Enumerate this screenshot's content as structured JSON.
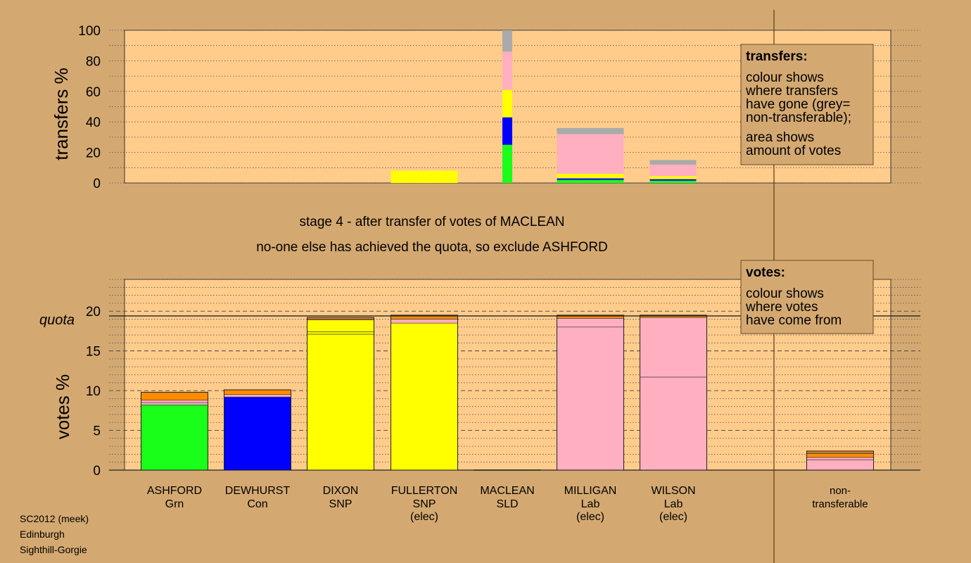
{
  "footer": [
    "SC2012 (meek)",
    "Edinburgh",
    "Sighthill-Gorgie"
  ],
  "stage_title": "stage 4 - after transfer of votes of MACLEAN",
  "stage_subtitle": "no-one else has achieved the quota, so exclude ASHFORD",
  "colors": {
    "background": "#d4a971",
    "plot_bg": "#ffcc8c",
    "Grn": "#19ff19",
    "Con": "#0000ff",
    "SNP": "#ffff00",
    "SLD": "#ffff00",
    "Lab": "#ffafc0",
    "orange": "#ff8c00",
    "nontransferable": "#aaaaaa"
  },
  "legend_transfers": {
    "title": "transfers:",
    "lines": [
      "colour shows",
      "where transfers",
      "have gone (grey=",
      "non-transferable);"
    ],
    "lines2": [
      "area shows",
      "amount of votes"
    ]
  },
  "legend_votes": {
    "title": "votes:",
    "lines": [
      "colour shows",
      "where votes",
      "have come from"
    ]
  },
  "chart_data": [
    {
      "type": "bar",
      "ylabel": "transfers %",
      "ylim": [
        0,
        100
      ],
      "yticks": [
        0,
        20,
        40,
        60,
        80,
        100
      ],
      "note": "transfers of votes of MACLEAN (SLD)",
      "source_column": {
        "candidate": "MACLEAN",
        "segments": [
          {
            "color": "#19ff19",
            "from": 0,
            "to": 25
          },
          {
            "color": "#0000ff",
            "from": 25,
            "to": 43
          },
          {
            "color": "#ffff00",
            "from": 43,
            "to": 61
          },
          {
            "color": "#ffafc0",
            "from": 61,
            "to": 86
          },
          {
            "color": "#aaaaaa",
            "from": 86,
            "to": 100
          }
        ]
      },
      "receivers": [
        {
          "candidate": "FULLERTON",
          "segments": [
            {
              "color": "#ffff00",
              "from": 0,
              "to": 8
            }
          ]
        },
        {
          "candidate": "MILLIGAN",
          "segments": [
            {
              "color": "#19ff19",
              "from": 0,
              "to": 2
            },
            {
              "color": "#0000ff",
              "from": 2,
              "to": 3
            },
            {
              "color": "#ffff00",
              "from": 3,
              "to": 6
            },
            {
              "color": "#ffafc0",
              "from": 6,
              "to": 32
            },
            {
              "color": "#aaaaaa",
              "from": 32,
              "to": 36
            }
          ]
        },
        {
          "candidate": "WILSON",
          "segments": [
            {
              "color": "#19ff19",
              "from": 0,
              "to": 1.5
            },
            {
              "color": "#0000ff",
              "from": 1.5,
              "to": 2.5
            },
            {
              "color": "#ffff00",
              "from": 2.5,
              "to": 4.5
            },
            {
              "color": "#ffafc0",
              "from": 4.5,
              "to": 12
            },
            {
              "color": "#aaaaaa",
              "from": 12,
              "to": 15
            }
          ]
        }
      ]
    },
    {
      "type": "bar",
      "ylabel": "votes %",
      "ylim": [
        0,
        24
      ],
      "yticks": [
        0,
        5,
        10,
        15,
        20
      ],
      "quota": 19.4,
      "quota_label": "quota",
      "candidates": [
        {
          "name": "ASHFORD",
          "party": "Grn",
          "elec": "",
          "total": 9.8,
          "segments": [
            {
              "color": "#19ff19",
              "from": 0,
              "to": 8.2
            },
            {
              "color": "#ffafc0",
              "from": 8.2,
              "to": 8.5
            },
            {
              "color": "#ffafc0",
              "from": 8.5,
              "to": 8.8
            },
            {
              "color": "#ff8c00",
              "from": 8.8,
              "to": 9.8
            }
          ]
        },
        {
          "name": "DEWHURST",
          "party": "Con",
          "elec": "",
          "total": 10.1,
          "segments": [
            {
              "color": "#0000ff",
              "from": 0,
              "to": 9.2
            },
            {
              "color": "#ffafc0",
              "from": 9.2,
              "to": 9.5
            },
            {
              "color": "#ff8c00",
              "from": 9.5,
              "to": 10.1
            }
          ]
        },
        {
          "name": "DIXON",
          "party": "SNP",
          "elec": "",
          "total": 19.2,
          "segments": [
            {
              "color": "#ffff00",
              "from": 0,
              "to": 17.1
            },
            {
              "color": "#ffff00",
              "from": 17.1,
              "to": 17.4
            },
            {
              "color": "#ffff00",
              "from": 17.4,
              "to": 18.9
            },
            {
              "color": "#ffafc0",
              "from": 18.9,
              "to": 19.0
            },
            {
              "color": "#ff8c00",
              "from": 19.0,
              "to": 19.2
            }
          ]
        },
        {
          "name": "FULLERTON",
          "party": "SNP",
          "elec": "(elec)",
          "total": 19.5,
          "segments": [
            {
              "color": "#ffff00",
              "from": 0,
              "to": 18.5
            },
            {
              "color": "#ffafc0",
              "from": 18.5,
              "to": 19.0
            },
            {
              "color": "#ff8c00",
              "from": 19.0,
              "to": 19.5
            }
          ]
        },
        {
          "name": "MACLEAN",
          "party": "SLD",
          "elec": "",
          "total": 0,
          "segments": []
        },
        {
          "name": "MILLIGAN",
          "party": "Lab",
          "elec": "(elec)",
          "total": 19.5,
          "segments": [
            {
              "color": "#ffafc0",
              "from": 0,
              "to": 18.0
            },
            {
              "color": "#ffafc0",
              "from": 18.0,
              "to": 19.1
            },
            {
              "color": "#ff8c00",
              "from": 19.1,
              "to": 19.5
            }
          ]
        },
        {
          "name": "WILSON",
          "party": "Lab",
          "elec": "(elec)",
          "total": 19.5,
          "segments": [
            {
              "color": "#ffafc0",
              "from": 0,
              "to": 11.7
            },
            {
              "color": "#ffafc0",
              "from": 11.7,
              "to": 19.2
            },
            {
              "color": "#ff8c00",
              "from": 19.2,
              "to": 19.5
            }
          ]
        }
      ],
      "nontransferable": {
        "label1": "non-",
        "label2": "transferable",
        "total": 2.4,
        "segments": [
          {
            "color": "#ffafc0",
            "from": 0,
            "to": 1.3
          },
          {
            "color": "#ffafc0",
            "from": 1.3,
            "to": 1.6
          },
          {
            "color": "#ff8c00",
            "from": 1.6,
            "to": 2.1
          },
          {
            "color": "#ffafc0",
            "from": 2.1,
            "to": 2.2
          },
          {
            "color": "#ff8c00",
            "from": 2.2,
            "to": 2.4
          }
        ]
      }
    }
  ]
}
